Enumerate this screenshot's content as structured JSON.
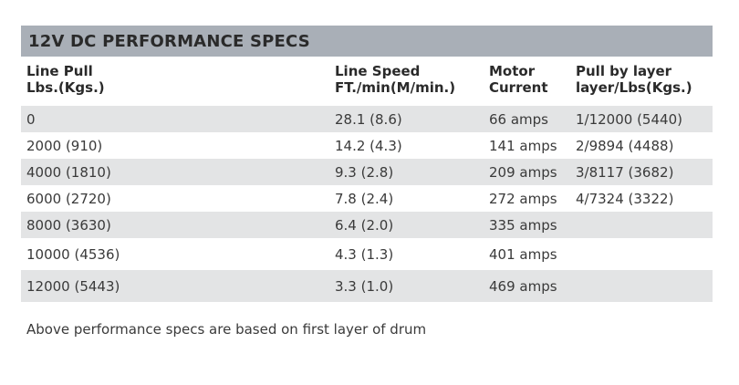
{
  "title": "12V DC PERFORMANCE SPECS",
  "headers": {
    "line_pull": [
      "Line Pull",
      "Lbs.(Kgs.)"
    ],
    "line_speed": [
      "Line Speed",
      "FT./min(M/min.)"
    ],
    "motor_current": [
      "Motor",
      "Current"
    ],
    "pull_by_layer": [
      "Pull by layer",
      "layer/Lbs(Kgs.)"
    ]
  },
  "rows": [
    {
      "line_pull": "0",
      "line_speed": "28.1 (8.6)",
      "motor_current": "66 amps",
      "pull_by_layer": "1/12000 (5440)"
    },
    {
      "line_pull": "2000 (910)",
      "line_speed": "14.2 (4.3)",
      "motor_current": "141 amps",
      "pull_by_layer": "2/9894 (4488)"
    },
    {
      "line_pull": "4000 (1810)",
      "line_speed": "9.3 (2.8)",
      "motor_current": "209 amps",
      "pull_by_layer": "3/8117 (3682)"
    },
    {
      "line_pull": "6000 (2720)",
      "line_speed": "7.8 (2.4)",
      "motor_current": "272 amps",
      "pull_by_layer": "4/7324 (3322)"
    },
    {
      "line_pull": "8000 (3630)",
      "line_speed": "6.4 (2.0)",
      "motor_current": "335 amps",
      "pull_by_layer": ""
    },
    {
      "line_pull": "10000 (4536)",
      "line_speed": "4.3 (1.3)",
      "motor_current": "401 amps",
      "pull_by_layer": ""
    },
    {
      "line_pull": "12000 (5443)",
      "line_speed": "3.3 (1.0)",
      "motor_current": "469 amps",
      "pull_by_layer": ""
    }
  ],
  "note": "Above performance specs are based on first layer of drum",
  "colors": {
    "title_bar": "#a9afb7",
    "shaded_row": "#e3e4e5",
    "text": "#3a3a3a"
  }
}
